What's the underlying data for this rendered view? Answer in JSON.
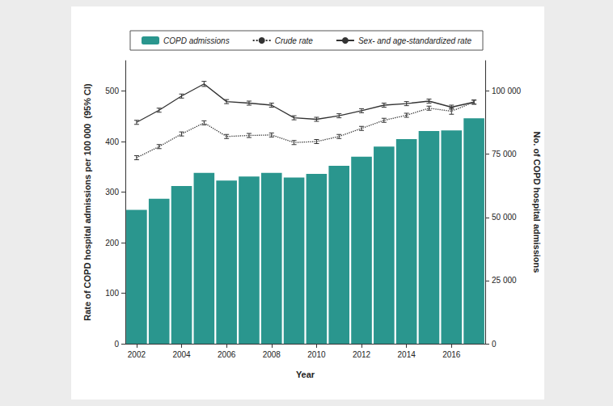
{
  "chart_data": {
    "type": "bar",
    "categories": [
      "2002",
      null,
      "2004",
      null,
      "2006",
      null,
      "2008",
      null,
      "2010",
      null,
      "2012",
      null,
      "2014",
      null,
      "2016",
      null
    ],
    "x_label": "Year",
    "y_label": "Rate of COPD hospital admissions per 100 000  (95% CI)",
    "y2_label": "No. of COPD hospital admissions",
    "ylim": [
      0,
      560
    ],
    "yticks": [
      0,
      100,
      200,
      300,
      400,
      500
    ],
    "y2lim": [
      0,
      112000
    ],
    "y2ticks": [
      0,
      {
        "value": 25000,
        "label": "25 000"
      },
      {
        "value": 50000,
        "label": "50 000"
      },
      {
        "value": 75000,
        "label": "75 000"
      },
      {
        "value": 100000,
        "label": "100 000"
      }
    ],
    "legend": "top",
    "series": [
      {
        "name": "COPD admissions",
        "type": "bar",
        "axis": "y2",
        "color": "#2a968e",
        "values": [
          53000,
          57400,
          62400,
          67600,
          64600,
          66200,
          67600,
          65800,
          67200,
          70400,
          74000,
          78000,
          81000,
          84200,
          84400,
          89200
        ]
      },
      {
        "name": "Crude rate",
        "type": "line",
        "color": "#333333",
        "line_style": "dotted",
        "values": [
          368,
          390,
          415,
          437,
          410,
          412,
          413,
          398,
          400,
          410,
          426,
          442,
          452,
          466,
          460,
          478
        ],
        "error": [
          4,
          4,
          4,
          4,
          4,
          4,
          4,
          4,
          4,
          4,
          4,
          4,
          4,
          4,
          6,
          4
        ]
      },
      {
        "name": "Sex- and age-standardized rate",
        "type": "line",
        "color": "#333333",
        "line_style": "solid",
        "values": [
          438,
          462,
          490,
          514,
          479,
          476,
          472,
          447,
          444,
          451,
          461,
          472,
          475,
          480,
          468,
          478
        ],
        "error": [
          4,
          4,
          4,
          5,
          4,
          4,
          4,
          4,
          4,
          4,
          4,
          4,
          4,
          4,
          4,
          4
        ]
      }
    ]
  }
}
